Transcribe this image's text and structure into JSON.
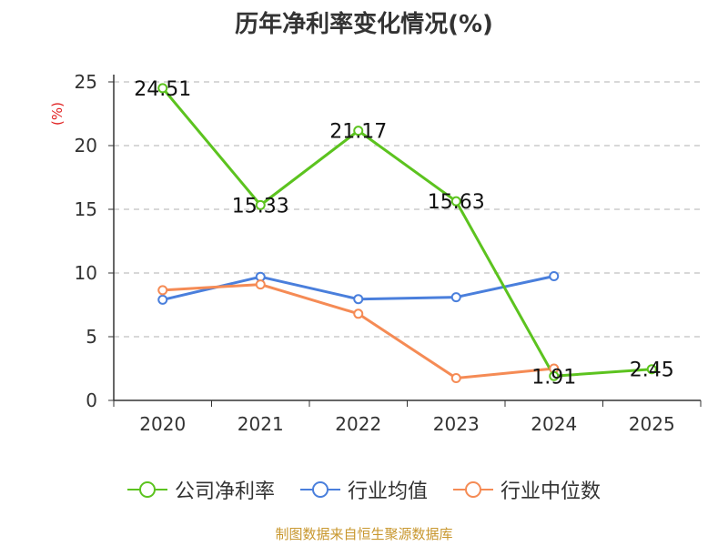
{
  "chart_data": {
    "type": "line",
    "title": "历年净利率变化情况(%)",
    "ylabel": "(%)",
    "xlabel": "",
    "categories": [
      "2020",
      "2021",
      "2022",
      "2023",
      "2024",
      "2025"
    ],
    "ylim": [
      0,
      25
    ],
    "yticks": [
      0,
      5,
      10,
      15,
      20,
      25
    ],
    "grid": true,
    "legend_position": "bottom",
    "series": [
      {
        "name": "公司净利率",
        "color": "#5cc31f",
        "values": [
          24.51,
          15.33,
          21.17,
          15.63,
          1.91,
          2.45
        ],
        "labels": [
          "24.51",
          "15.33",
          "21.17",
          "15.63",
          "1.91",
          "2.45"
        ]
      },
      {
        "name": "行业均值",
        "color": "#4a7fdc",
        "values": [
          7.9,
          9.7,
          7.95,
          8.1,
          9.75,
          null
        ]
      },
      {
        "name": "行业中位数",
        "color": "#f58b55",
        "values": [
          8.65,
          9.1,
          6.8,
          1.75,
          2.5,
          null
        ]
      }
    ]
  },
  "footer": {
    "source": "制图数据来自恒生聚源数据库"
  }
}
